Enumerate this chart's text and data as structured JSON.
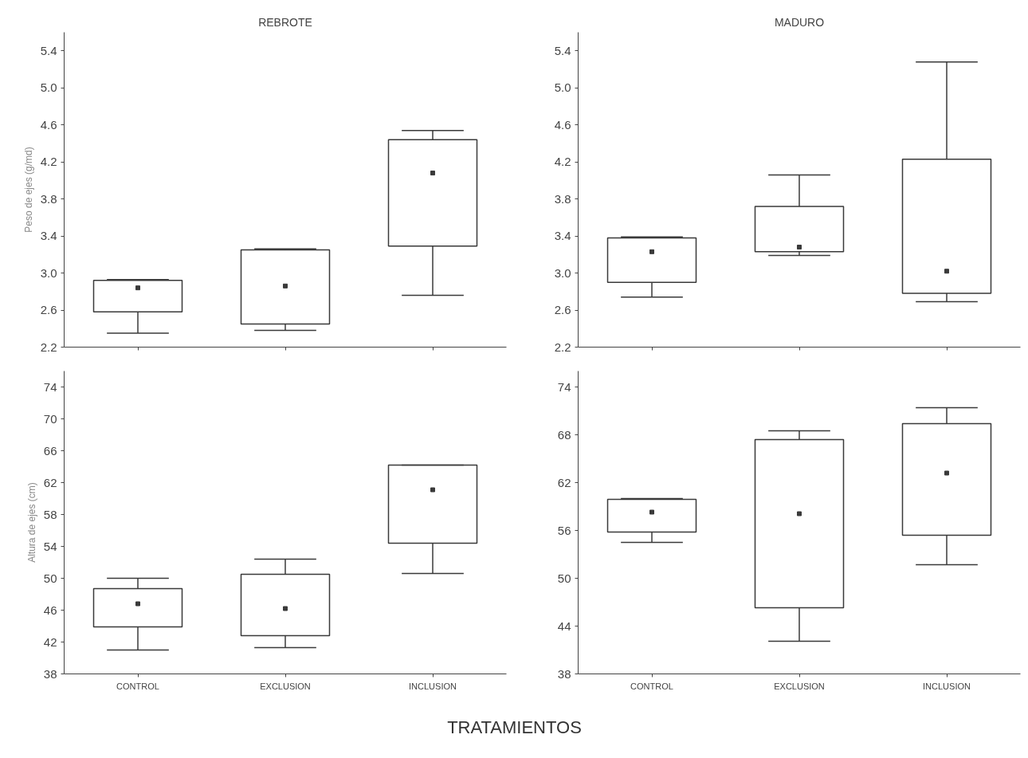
{
  "chart_data": [
    {
      "type": "box",
      "title": "REBROTE",
      "ylabel": "Peso de ejes (g/md)",
      "categories": [
        null,
        null,
        null
      ],
      "ylim": [
        2.2,
        5.6
      ],
      "yticks": [
        {
          "value": 2.2,
          "label": "2.2"
        },
        2.6,
        {
          "value": 3.0,
          "label": "3.0"
        },
        3.4,
        3.8,
        4.2,
        4.6,
        {
          "value": 5.0,
          "label": "5.0"
        },
        5.4
      ],
      "grid": false,
      "marker": "square",
      "series": [
        {
          "color": "#3a3a3a",
          "boxes": [
            {
              "low": 2.35,
              "q1": 2.58,
              "median": 2.84,
              "q3": 2.92,
              "high": 2.93
            },
            {
              "low": 2.38,
              "q1": 2.45,
              "median": 2.86,
              "q3": 3.25,
              "high": 3.26
            },
            {
              "low": 2.76,
              "q1": 3.29,
              "median": 4.08,
              "q3": 4.44,
              "high": 4.54
            }
          ]
        }
      ]
    },
    {
      "type": "box",
      "title": "MADURO",
      "categories": [
        null,
        null,
        null
      ],
      "ylim": [
        2.2,
        5.6
      ],
      "yticks": [
        {
          "value": 2.2,
          "label": "2.2"
        },
        2.6,
        {
          "value": 3.0,
          "label": "3.0"
        },
        3.4,
        3.8,
        4.2,
        4.6,
        {
          "value": 5.0,
          "label": "5.0"
        },
        5.4
      ],
      "grid": false,
      "marker": "square",
      "series": [
        {
          "color": "#3a3a3a",
          "boxes": [
            {
              "low": 2.74,
              "q1": 2.9,
              "median": 3.23,
              "q3": 3.38,
              "high": 3.39
            },
            {
              "low": 3.19,
              "q1": 3.23,
              "median": 3.28,
              "q3": 3.72,
              "high": 4.06
            },
            {
              "low": 2.69,
              "q1": 2.78,
              "median": 3.02,
              "q3": 4.23,
              "high": 5.28
            }
          ]
        }
      ]
    },
    {
      "type": "box",
      "ylabel": "Altura de ejes (cm)",
      "xlabel": "TRATAMIENTOS",
      "categories": [
        "CONTROL",
        "EXCLUSION",
        "INCLUSION"
      ],
      "ylim": [
        38,
        76
      ],
      "yticks": [
        38,
        42,
        46,
        50,
        54,
        58,
        62,
        66,
        70,
        74
      ],
      "grid": false,
      "marker": "square",
      "series": [
        {
          "color": "#3a3a3a",
          "boxes": [
            {
              "low": 41.0,
              "q1": 43.9,
              "median": 46.8,
              "q3": 48.7,
              "high": 50.0
            },
            {
              "low": 41.3,
              "q1": 42.8,
              "median": 46.2,
              "q3": 50.5,
              "high": 52.4
            },
            {
              "low": 50.6,
              "q1": 54.4,
              "median": 61.1,
              "q3": 64.2,
              "high": 64.2
            }
          ]
        }
      ]
    },
    {
      "type": "box",
      "categories": [
        "CONTROL",
        "EXCLUSION",
        "INCLUSION"
      ],
      "ylim": [
        38,
        76
      ],
      "yticks": [
        38,
        44,
        50,
        56,
        62,
        68,
        74
      ],
      "grid": false,
      "marker": "square",
      "series": [
        {
          "color": "#3a3a3a",
          "boxes": [
            {
              "low": 54.5,
              "q1": 55.8,
              "median": 58.3,
              "q3": 59.9,
              "high": 60.0
            },
            {
              "low": 42.1,
              "q1": 46.3,
              "median": 58.1,
              "q3": 67.4,
              "high": 68.5
            },
            {
              "low": 51.7,
              "q1": 55.4,
              "median": 63.2,
              "q3": 69.4,
              "high": 71.4
            }
          ]
        }
      ]
    }
  ]
}
